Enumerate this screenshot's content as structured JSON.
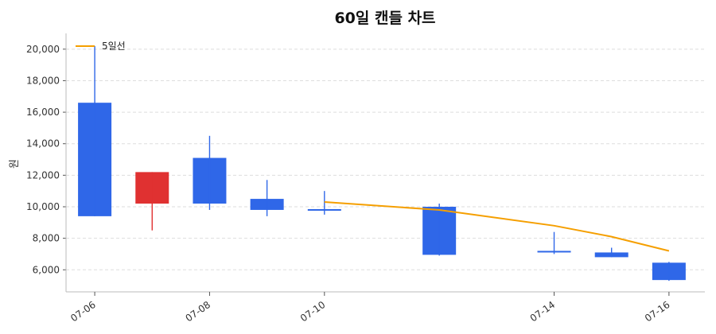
{
  "chart_data": {
    "type": "candlestick",
    "title": "60일 캔들 차트",
    "xlabel": "",
    "ylabel": "원",
    "ylim": [
      4600,
      21000
    ],
    "yticks": [
      6000,
      8000,
      10000,
      12000,
      14000,
      16000,
      18000,
      20000
    ],
    "ytick_labels": [
      "6,000",
      "8,000",
      "10,000",
      "12,000",
      "14,000",
      "16,000",
      "18,000",
      "20,000"
    ],
    "xlim": [
      "2025-07-05 12:00",
      "2025-07-16 15:00"
    ],
    "xticks": [
      "2025-07-06",
      "2025-07-08",
      "2025-07-10",
      "2025-07-14",
      "2025-07-16"
    ],
    "xtick_labels": [
      "07-06",
      "07-08",
      "07-10",
      "07-14",
      "07-16"
    ],
    "grid": true,
    "legend_position": "top-left",
    "colors": {
      "up": "#e03131",
      "down": "#2f67e8",
      "ma": "#f59f00",
      "grid": "#dddddd"
    },
    "candles": [
      {
        "date": "2025-07-06",
        "open": 16600,
        "high": 20200,
        "low": 9400,
        "close": 9400
      },
      {
        "date": "2025-07-07",
        "open": 10200,
        "high": 12200,
        "low": 8500,
        "close": 12200
      },
      {
        "date": "2025-07-08",
        "open": 13100,
        "high": 14500,
        "low": 9800,
        "close": 10200
      },
      {
        "date": "2025-07-09",
        "open": 10500,
        "high": 11700,
        "low": 9400,
        "close": 9800
      },
      {
        "date": "2025-07-10",
        "open": 9850,
        "high": 11000,
        "low": 9500,
        "close": 9800
      },
      {
        "date": "2025-07-12",
        "open": 10000,
        "high": 10200,
        "low": 6900,
        "close": 6950
      },
      {
        "date": "2025-07-14",
        "open": 7200,
        "high": 8400,
        "low": 7000,
        "close": 7100
      },
      {
        "date": "2025-07-15",
        "open": 7100,
        "high": 7400,
        "low": 6800,
        "close": 6800
      },
      {
        "date": "2025-07-16",
        "open": 6450,
        "high": 6500,
        "low": 5300,
        "close": 5350
      }
    ],
    "series": [
      {
        "name": "5일선",
        "x": [
          "2025-07-10",
          "2025-07-12",
          "2025-07-14",
          "2025-07-15",
          "2025-07-16"
        ],
        "values": [
          10300,
          9800,
          8800,
          8100,
          7200
        ]
      }
    ]
  }
}
